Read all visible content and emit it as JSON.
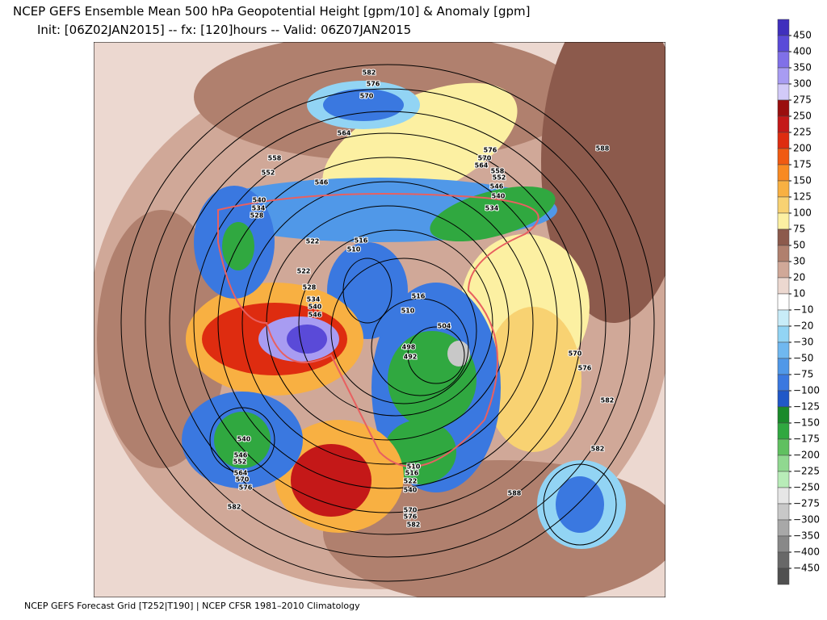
{
  "header": {
    "title": "NCEP GEFS Ensemble Mean 500 hPa Geopotential Height [gpm/10] & Anomaly [gpm]",
    "subtitle": "Init: [06Z02JAN2015] -- fx: [120]hours -- Valid: 06Z07JAN2015"
  },
  "footer": "NCEP GEFS Forecast Grid [T252|T190] | NCEP CFSR 1981–2010 Climatology",
  "contour_labels": [
    582,
    576,
    570,
    564,
    558,
    552,
    546,
    540,
    534,
    528,
    522,
    516,
    510,
    522,
    528,
    534,
    540,
    546,
    516,
    510,
    504,
    498,
    492,
    576,
    570,
    564,
    558,
    552,
    546,
    540,
    534,
    588,
    570,
    576,
    582,
    582,
    588,
    540,
    546,
    552,
    564,
    570,
    576,
    582,
    510,
    516,
    522,
    540,
    570,
    576,
    582
  ],
  "colorbar": {
    "ticks": [
      450,
      400,
      350,
      300,
      275,
      250,
      225,
      200,
      175,
      150,
      125,
      100,
      75,
      50,
      30,
      20,
      10,
      {
        "value": -10,
        "label": "−10"
      },
      {
        "value": -20,
        "label": "−20"
      },
      {
        "value": -30,
        "label": "−30"
      },
      {
        "value": -50,
        "label": "−50"
      },
      {
        "value": -75,
        "label": "−75"
      },
      {
        "value": -100,
        "label": "−100"
      },
      {
        "value": -125,
        "label": "−125"
      },
      {
        "value": -150,
        "label": "−150"
      },
      {
        "value": -175,
        "label": "−175"
      },
      {
        "value": -200,
        "label": "−200"
      },
      {
        "value": -225,
        "label": "−225"
      },
      {
        "value": -250,
        "label": "−250"
      },
      {
        "value": -275,
        "label": "−275"
      },
      {
        "value": -300,
        "label": "−300"
      },
      {
        "value": -350,
        "label": "−350"
      },
      {
        "value": -400,
        "label": "−400"
      },
      {
        "value": -450,
        "label": "−450"
      }
    ],
    "colors": [
      "#3f2fbd",
      "#5a4ad8",
      "#8070e8",
      "#a89cf2",
      "#d2caf8",
      "#9a0e0e",
      "#c41818",
      "#de2c10",
      "#f05a12",
      "#f88a22",
      "#f8b042",
      "#f8d272",
      "#fcf0a2",
      "#8c5a4c",
      "#b0806e",
      "#d0a898",
      "#ecd8d0",
      "#ffffff",
      "#c8ecf8",
      "#92d4f4",
      "#70b8f0",
      "#5098e8",
      "#3a78e0",
      "#2058c8",
      "#1a8a2a",
      "#30a840",
      "#60c060",
      "#90d890",
      "#b8ecb8",
      "#e6e6e6",
      "#c8c8c8",
      "#a8a8a8",
      "#888888",
      "#686868",
      "#505050"
    ]
  }
}
